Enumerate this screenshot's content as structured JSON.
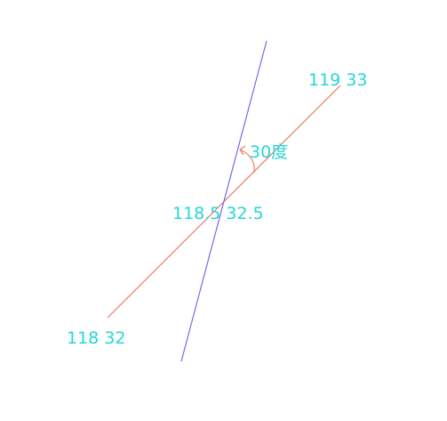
{
  "colors": {
    "background": "#ffffff",
    "red_line": "#f07a6a",
    "blue_line": "#7b68ee",
    "label_text": "#28d6d6",
    "angle_arc": "#f07a6a"
  },
  "labels": {
    "point_top_right": "119 33",
    "point_center": "118.5 32.5",
    "point_bottom_left": "118 32",
    "angle": "30度"
  }
}
